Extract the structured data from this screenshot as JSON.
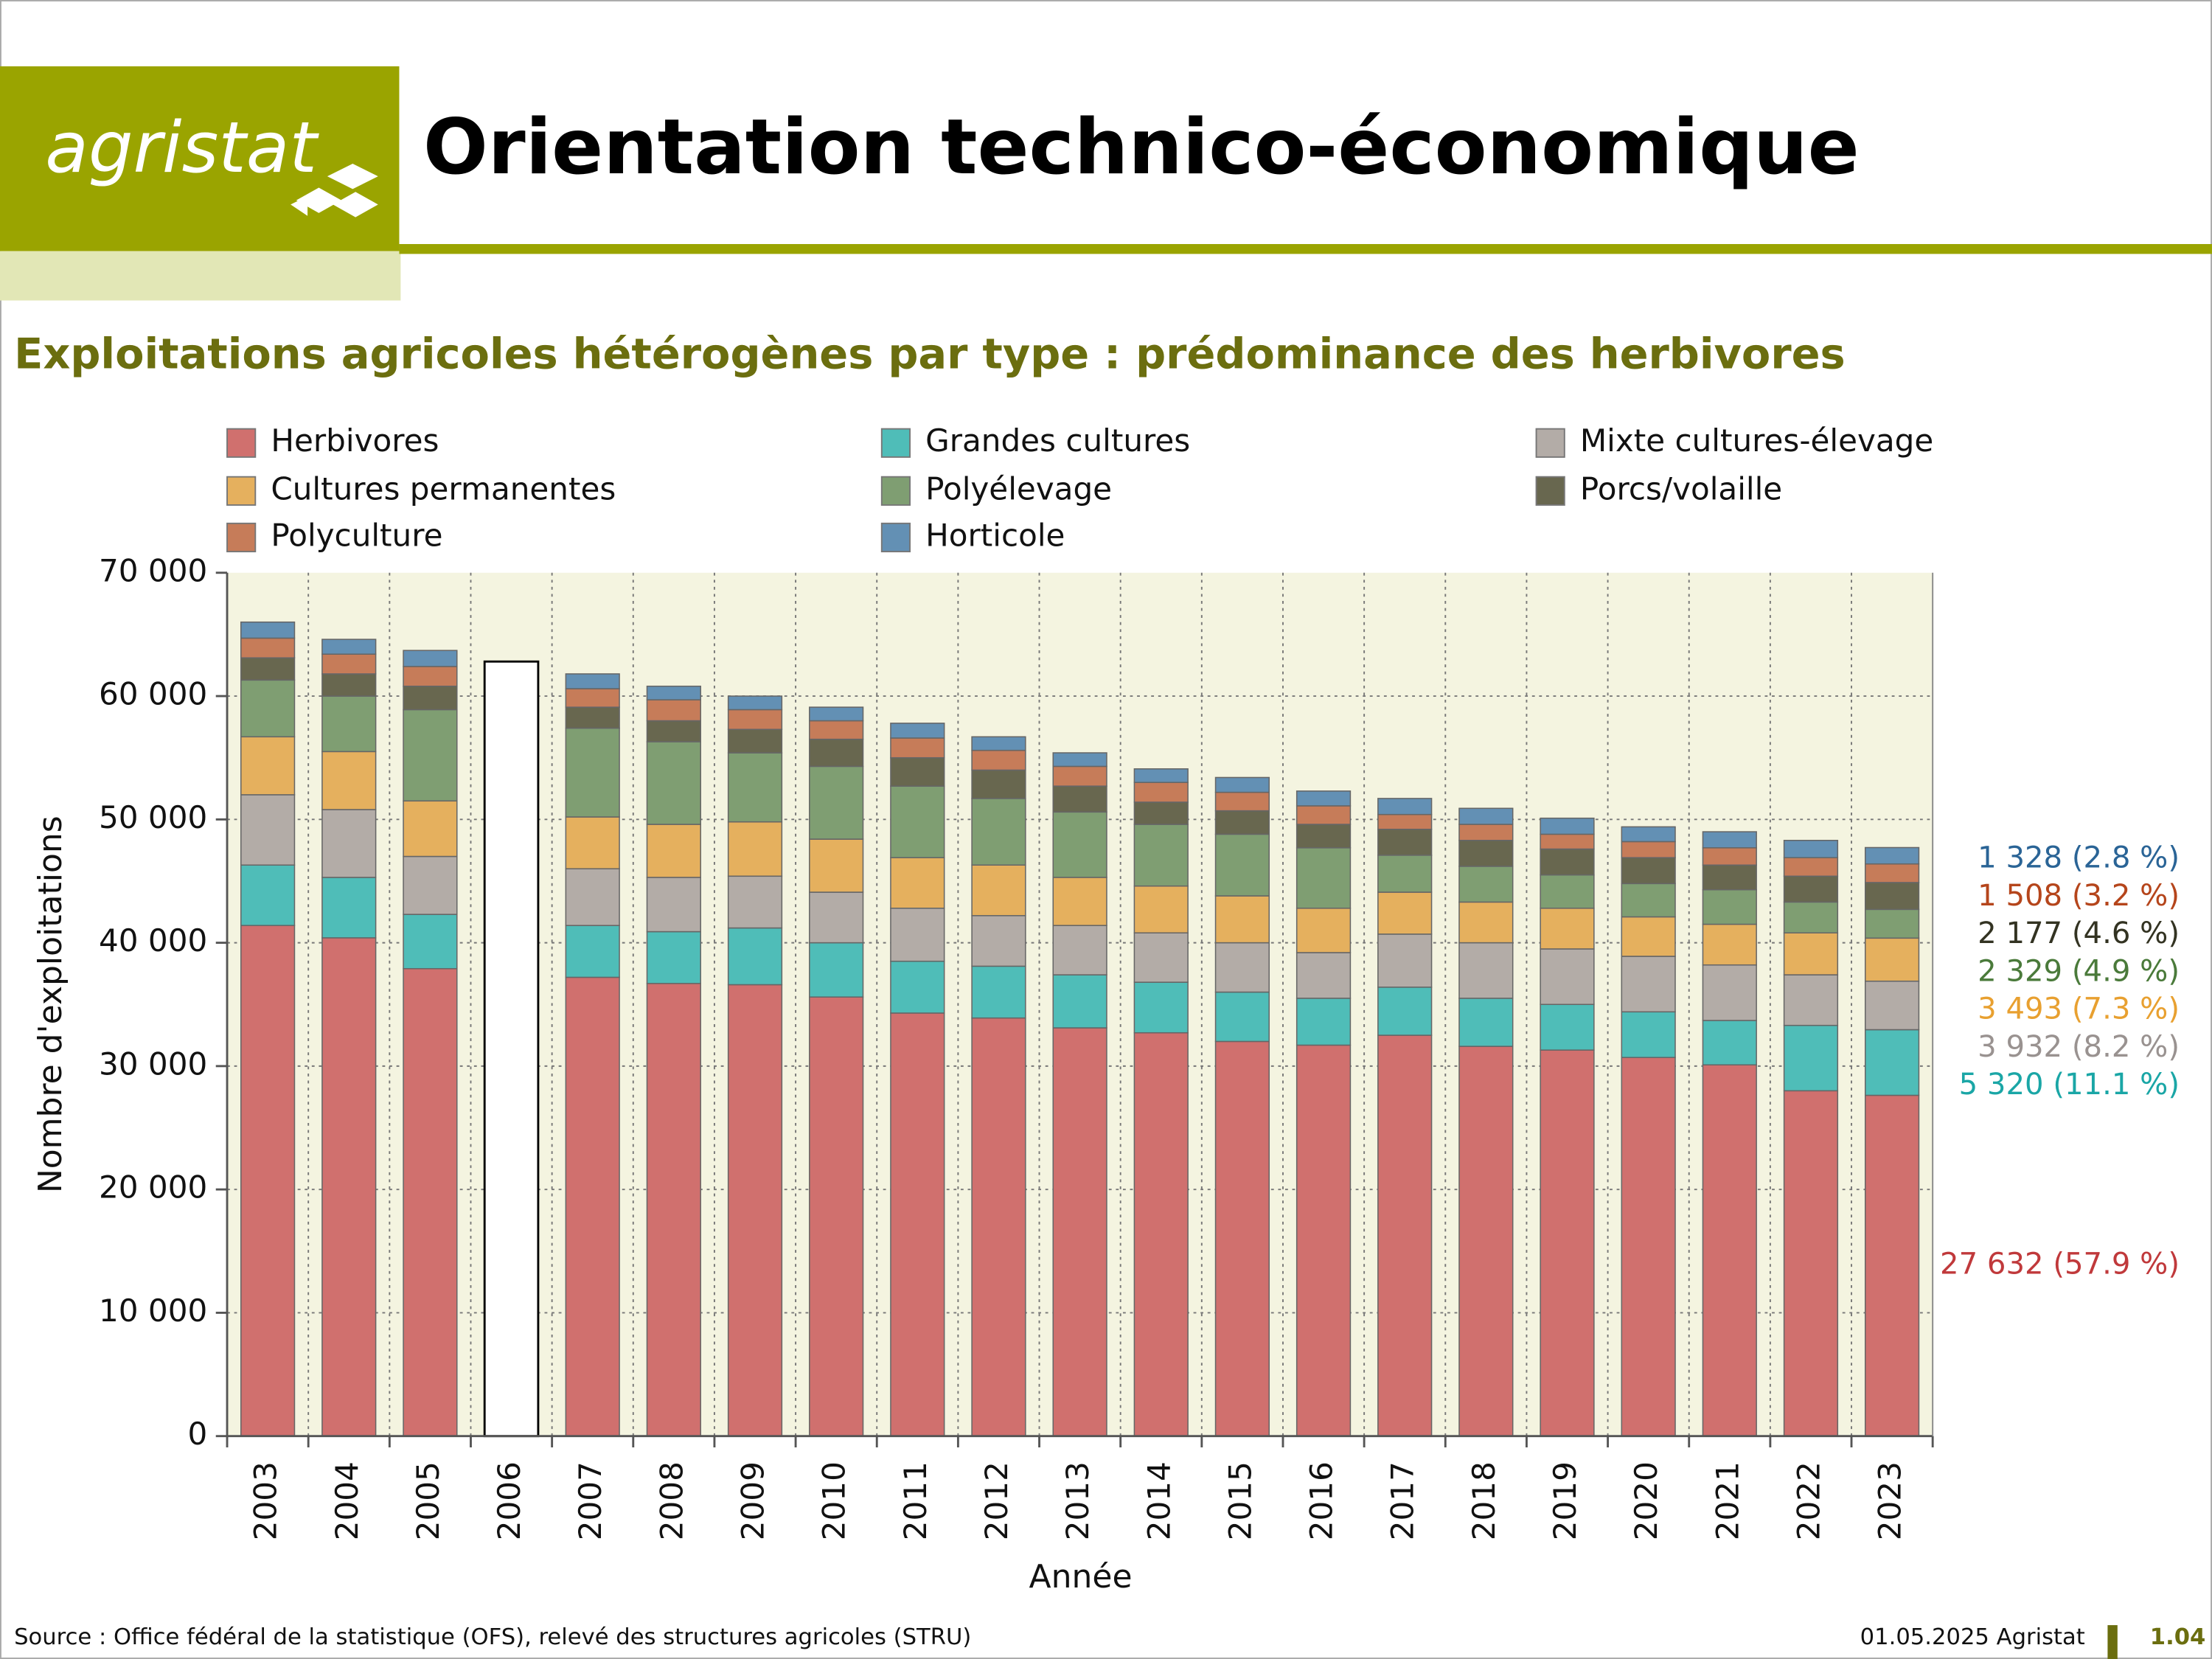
{
  "header": {
    "logo": "agristat",
    "title": "Orientation technico-économique"
  },
  "chart_data": {
    "type": "bar",
    "stacked": true,
    "title": "Exploitations agricoles hétérogènes par type : prédominance des herbivores",
    "x_label": "Année",
    "y_label": "Nombre d'exploitations",
    "categories": [
      "2003",
      "2004",
      "2005",
      "2006",
      "2007",
      "2008",
      "2009",
      "2010",
      "2011",
      "2012",
      "2013",
      "2014",
      "2015",
      "2016",
      "2017",
      "2018",
      "2019",
      "2020",
      "2021",
      "2022",
      "2023"
    ],
    "ylim": [
      0,
      70000
    ],
    "yticks": [
      0,
      {
        "value": 10000,
        "label": "10 000"
      },
      {
        "value": 20000,
        "label": "20 000"
      },
      {
        "value": 30000,
        "label": "30 000"
      },
      {
        "value": 40000,
        "label": "40 000"
      },
      {
        "value": 50000,
        "label": "50 000"
      },
      {
        "value": 60000,
        "label": "60 000"
      },
      {
        "value": 70000,
        "label": "70 000"
      }
    ],
    "grid": true,
    "legend": "top",
    "series": [
      {
        "name": "Herbivores",
        "color": "#d0706e",
        "label_color": "#c0393b",
        "values": [
          41400,
          40400,
          37900,
          null,
          37200,
          36700,
          36600,
          35600,
          34300,
          33900,
          33100,
          32700,
          32000,
          31700,
          32500,
          31600,
          31300,
          30700,
          30100,
          28000,
          27632
        ],
        "value_labels": [
          null,
          null,
          null,
          null,
          null,
          null,
          null,
          null,
          null,
          null,
          null,
          null,
          null,
          null,
          null,
          null,
          null,
          null,
          null,
          null,
          "27 632 (57.9 %)"
        ]
      },
      {
        "name": "Grandes cultures",
        "color": "#4fbdb8",
        "label_color": "#1aa6a6",
        "values": [
          4900,
          4900,
          4400,
          null,
          4200,
          4200,
          4600,
          4400,
          4200,
          4200,
          4300,
          4100,
          4000,
          3800,
          3900,
          3900,
          3700,
          3700,
          3600,
          5300,
          5320
        ],
        "value_labels": [
          null,
          null,
          null,
          null,
          null,
          null,
          null,
          null,
          null,
          null,
          null,
          null,
          null,
          null,
          null,
          null,
          null,
          null,
          null,
          null,
          "5 320 (11.1 %)"
        ]
      },
      {
        "name": "Mixte cultures-élevage",
        "color": "#b3aca7",
        "label_color": "#999290",
        "values": [
          5700,
          5500,
          4700,
          null,
          4600,
          4400,
          4200,
          4100,
          4300,
          4100,
          4000,
          4000,
          4000,
          3700,
          4300,
          4500,
          4500,
          4500,
          4500,
          4100,
          3932
        ],
        "value_labels": [
          null,
          null,
          null,
          null,
          null,
          null,
          null,
          null,
          null,
          null,
          null,
          null,
          null,
          null,
          null,
          null,
          null,
          null,
          null,
          null,
          "3 932 (8.2 %)"
        ]
      },
      {
        "name": "Cultures permanentes",
        "color": "#e5b05e",
        "label_color": "#e8a030",
        "values": [
          4700,
          4700,
          4500,
          null,
          4200,
          4300,
          4400,
          4300,
          4100,
          4100,
          3900,
          3800,
          3800,
          3600,
          3400,
          3300,
          3300,
          3200,
          3300,
          3400,
          3493
        ],
        "value_labels": [
          null,
          null,
          null,
          null,
          null,
          null,
          null,
          null,
          null,
          null,
          null,
          null,
          null,
          null,
          null,
          null,
          null,
          null,
          null,
          null,
          "3 493 (7.3 %)"
        ]
      },
      {
        "name": "Polyélevage",
        "color": "#7f9e72",
        "label_color": "#4a7a3a",
        "values": [
          4600,
          4500,
          7400,
          null,
          7200,
          6700,
          5600,
          5900,
          5800,
          5400,
          5300,
          5000,
          5000,
          4900,
          3000,
          2900,
          2700,
          2700,
          2800,
          2500,
          2329
        ],
        "value_labels": [
          null,
          null,
          null,
          null,
          null,
          null,
          null,
          null,
          null,
          null,
          null,
          null,
          null,
          null,
          null,
          null,
          null,
          null,
          null,
          null,
          "2 329 (4.9 %)"
        ]
      },
      {
        "name": "Porcs/volaille",
        "color": "#68674f",
        "label_color": "#333322",
        "values": [
          1800,
          1800,
          1900,
          null,
          1700,
          1700,
          1900,
          2200,
          2300,
          2300,
          2100,
          1800,
          1900,
          1900,
          2100,
          2100,
          2100,
          2100,
          2000,
          2100,
          2177
        ],
        "value_labels": [
          null,
          null,
          null,
          null,
          null,
          null,
          null,
          null,
          null,
          null,
          null,
          null,
          null,
          null,
          null,
          null,
          null,
          null,
          null,
          null,
          "2 177 (4.6 %)"
        ]
      },
      {
        "name": "Polyculture",
        "color": "#c67c59",
        "label_color": "#b5451b",
        "values": [
          1600,
          1600,
          1600,
          null,
          1500,
          1700,
          1600,
          1500,
          1600,
          1600,
          1600,
          1600,
          1500,
          1500,
          1200,
          1300,
          1200,
          1300,
          1400,
          1500,
          1508
        ],
        "value_labels": [
          null,
          null,
          null,
          null,
          null,
          null,
          null,
          null,
          null,
          null,
          null,
          null,
          null,
          null,
          null,
          null,
          null,
          null,
          null,
          null,
          "1 508 (3.2 %)"
        ]
      },
      {
        "name": "Horticole",
        "color": "#6390b4",
        "label_color": "#2a6496",
        "values": [
          1300,
          1200,
          1300,
          null,
          1200,
          1100,
          1100,
          1100,
          1200,
          1100,
          1100,
          1100,
          1200,
          1200,
          1300,
          1300,
          1300,
          1200,
          1300,
          1400,
          1328
        ],
        "value_labels": [
          null,
          null,
          null,
          null,
          null,
          null,
          null,
          null,
          null,
          null,
          null,
          null,
          null,
          null,
          null,
          null,
          null,
          null,
          null,
          null,
          "1 328 (2.8 %)"
        ]
      },
      {
        "color": "#ffffff",
        "values": [
          null,
          null,
          null,
          62800,
          null,
          null,
          null,
          null,
          null,
          null,
          null,
          null,
          null,
          null,
          null,
          null,
          null,
          null,
          null,
          null,
          null
        ]
      }
    ]
  },
  "footer": {
    "source": "Source : Office fédéral de la statistique (OFS), relevé des structures agricoles (STRU)",
    "date": "01.05.2025 Agristat",
    "page": "1.04"
  }
}
